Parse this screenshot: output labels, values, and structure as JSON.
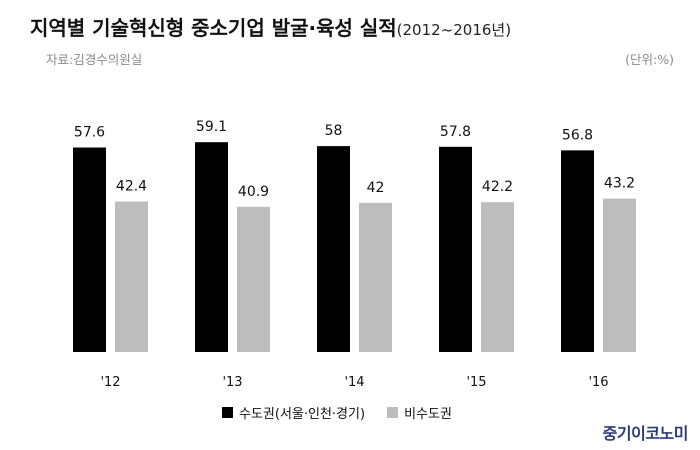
{
  "header": {
    "title": "지역별 기술혁신형 중소기업 발굴·육성 실적",
    "title_sub": "(2012~2016년)",
    "source": "자료:김경수의원실",
    "unit": "(단위:%)"
  },
  "logo": {
    "text": "중기이코노미"
  },
  "colors": {
    "series_capital": "#000000",
    "series_non_capital": "#bdbdbd",
    "logo": "#2d3a7a"
  },
  "chart_data": {
    "type": "bar",
    "categories": [
      "'12",
      "'13",
      "'14",
      "'15",
      "'16"
    ],
    "series": [
      {
        "name": "수도권(서울·인천·경기)",
        "values": [
          57.6,
          59.1,
          58,
          57.8,
          56.8
        ],
        "value_labels": [
          "57.6",
          "59.1",
          "58",
          "57.8",
          "56.8"
        ]
      },
      {
        "name": "비수도권",
        "values": [
          42.4,
          40.9,
          42,
          42.2,
          43.2
        ],
        "value_labels": [
          "42.4",
          "40.9",
          "42",
          "42.2",
          "43.2"
        ]
      }
    ],
    "ylim": [
      0,
      60
    ],
    "xlabel": "",
    "ylabel": "",
    "grid": false,
    "legend_position": "bottom-center"
  }
}
